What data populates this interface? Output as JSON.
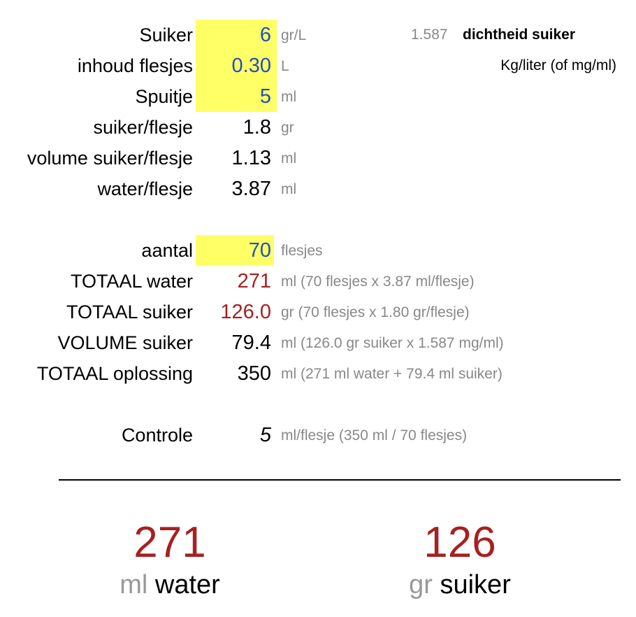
{
  "inputs": {
    "suiker": {
      "label": "Suiker",
      "value": "6",
      "unit": "gr/L"
    },
    "inhoud": {
      "label": "inhoud flesjes",
      "value": "0.30",
      "unit": "L"
    },
    "spuitje": {
      "label": "Spuitje",
      "value": "5",
      "unit": "ml"
    }
  },
  "density": {
    "value": "1.587",
    "label": "dichtheid suiker",
    "unit_note": "Kg/liter (of mg/ml)"
  },
  "calc": {
    "suiker_flesje": {
      "label": "suiker/flesje",
      "value": "1.8",
      "unit": "gr"
    },
    "volume_suiker_flesje": {
      "label": "volume suiker/flesje",
      "value": "1.13",
      "unit": "ml"
    },
    "water_flesje": {
      "label": "water/flesje",
      "value": "3.87",
      "unit": "ml"
    }
  },
  "aantal": {
    "label": "aantal",
    "value": "70",
    "unit": "flesjes"
  },
  "totals": {
    "water": {
      "label": "TOTAAL water",
      "value": "271",
      "unit": "ml  (70 flesjes x 3.87 ml/flesje)"
    },
    "suiker": {
      "label": "TOTAAL suiker",
      "value": "126.0",
      "unit": "gr  (70 flesjes x 1.80 gr/flesje)"
    },
    "volume": {
      "label": "VOLUME suiker",
      "value": "79.4",
      "unit": "ml  (126.0  gr suiker x 1.587 mg/ml)"
    },
    "oplossing": {
      "label": "TOTAAL oplossing",
      "value": "350",
      "unit": "ml (271 ml water + 79.4 ml suiker)"
    }
  },
  "controle": {
    "label": "Controle",
    "value": "5",
    "unit": "ml/flesje  (350 ml / 70 flesjes)"
  },
  "summary": {
    "water": {
      "value": "271",
      "unit": "ml",
      "word": "water"
    },
    "suiker": {
      "value": "126",
      "unit": "gr",
      "word": "suiker"
    }
  },
  "colors": {
    "highlight": "#ffff66",
    "input_blue": "#1f4fbf",
    "result_red": "#a62121",
    "unit_gray": "#888888"
  }
}
